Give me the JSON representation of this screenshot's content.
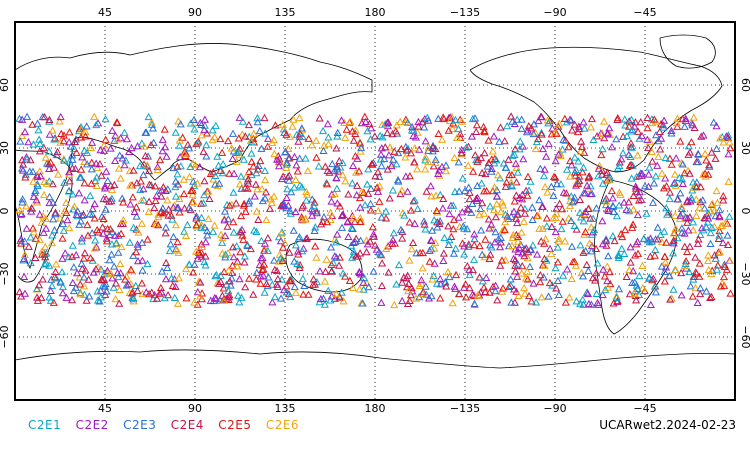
{
  "map": {
    "projection": "equirectangular, centered at 180",
    "lon_labels": [
      "45",
      "90",
      "135",
      "180",
      "−135",
      "−90",
      "−45"
    ],
    "lat_labels": [
      "60",
      "30",
      "0",
      "−30",
      "−60"
    ],
    "gridlines": "dotted",
    "coastline_color": "#000000",
    "occultation_lat_band": [
      -45,
      45
    ]
  },
  "legend": [
    {
      "label": "C2E1",
      "color": "#0aa7c9"
    },
    {
      "label": "C2E2",
      "color": "#a319c2"
    },
    {
      "label": "C2E3",
      "color": "#2a6fd6"
    },
    {
      "label": "C2E4",
      "color": "#c4154a"
    },
    {
      "label": "C2E5",
      "color": "#e21414"
    },
    {
      "label": "C2E6",
      "color": "#f2a40c"
    }
  ],
  "marker_shape": "open-triangle",
  "product_stamp": "UCARwet2.2024-02-23"
}
